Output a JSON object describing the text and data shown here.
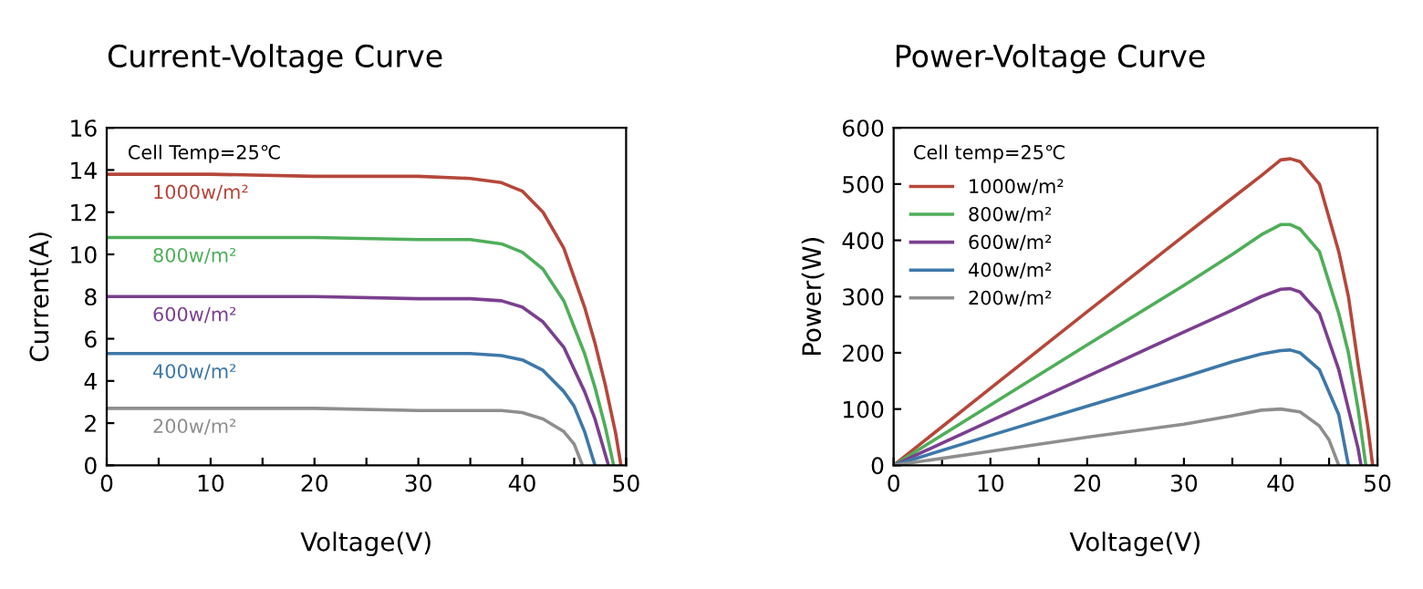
{
  "chart_data": [
    {
      "type": "line",
      "title": "Current-Voltage Curve",
      "xlabel": "Voltage(V)",
      "ylabel": "Current(A)",
      "annotations": [
        "Cell Temp=25℃"
      ],
      "xlim": [
        0,
        50
      ],
      "ylim": [
        0,
        16
      ],
      "xticks": [
        0,
        {
          "value": 5,
          "label": null
        },
        10,
        {
          "value": 15,
          "label": null
        },
        20,
        {
          "value": 25,
          "label": null
        },
        30,
        {
          "value": 35,
          "label": null
        },
        40,
        {
          "value": 45,
          "label": null
        },
        50
      ],
      "yticks": [
        0,
        2,
        4,
        6,
        8,
        10,
        12,
        14,
        16
      ],
      "grid": false,
      "legend": false,
      "marker": "none",
      "line_style": "solid",
      "series": [
        {
          "name": "1000w/m²",
          "color": "#b5473a",
          "x": [
            0,
            10,
            20,
            30,
            35,
            38,
            40,
            42,
            44,
            46,
            47,
            48,
            49,
            49.5
          ],
          "values": [
            13.8,
            13.8,
            13.7,
            13.7,
            13.6,
            13.4,
            13.0,
            12.0,
            10.3,
            7.5,
            5.8,
            3.8,
            1.5,
            0
          ]
        },
        {
          "name": "800w/m²",
          "color": "#4fae5a",
          "x": [
            0,
            10,
            20,
            30,
            35,
            38,
            40,
            42,
            44,
            46,
            47,
            48,
            48.8
          ],
          "values": [
            10.8,
            10.8,
            10.8,
            10.7,
            10.7,
            10.5,
            10.1,
            9.3,
            7.8,
            5.3,
            3.7,
            1.8,
            0
          ]
        },
        {
          "name": "600w/m²",
          "color": "#7b3f8f",
          "x": [
            0,
            10,
            20,
            30,
            35,
            38,
            40,
            42,
            44,
            46,
            47,
            48.3
          ],
          "values": [
            8.0,
            8.0,
            8.0,
            7.9,
            7.9,
            7.8,
            7.5,
            6.8,
            5.6,
            3.5,
            2.2,
            0
          ]
        },
        {
          "name": "400w/m²",
          "color": "#3e78a8",
          "x": [
            0,
            10,
            20,
            30,
            35,
            38,
            40,
            42,
            44,
            45,
            46,
            47
          ],
          "values": [
            5.3,
            5.3,
            5.3,
            5.3,
            5.3,
            5.2,
            5.0,
            4.5,
            3.5,
            2.8,
            1.6,
            0
          ]
        },
        {
          "name": "200w/m²",
          "color": "#8e8e8e",
          "x": [
            0,
            10,
            20,
            30,
            35,
            38,
            40,
            42,
            44,
            45,
            45.8
          ],
          "values": [
            2.7,
            2.7,
            2.7,
            2.6,
            2.6,
            2.6,
            2.5,
            2.2,
            1.6,
            1.0,
            0
          ]
        }
      ]
    },
    {
      "type": "line",
      "title": "Power-Voltage Curve",
      "xlabel": "Voltage(V)",
      "ylabel": "Power(W)",
      "annotations": [
        "Cell temp=25℃"
      ],
      "xlim": [
        0,
        50
      ],
      "ylim": [
        0,
        600
      ],
      "xticks": [
        0,
        {
          "value": 5,
          "label": null
        },
        10,
        {
          "value": 15,
          "label": null
        },
        20,
        {
          "value": 25,
          "label": null
        },
        30,
        {
          "value": 35,
          "label": null
        },
        40,
        {
          "value": 45,
          "label": null
        },
        50
      ],
      "yticks": [
        0,
        100,
        200,
        300,
        400,
        500,
        600
      ],
      "grid": false,
      "legend": "top left",
      "marker": "none",
      "line_style": "solid",
      "series": [
        {
          "name": "1000w/m²",
          "color": "#b5473a",
          "x": [
            0,
            10,
            20,
            30,
            35,
            38,
            40,
            41,
            42,
            44,
            46,
            47,
            48,
            49,
            49.5
          ],
          "values": [
            0,
            137,
            273,
            408,
            475,
            515,
            543,
            545,
            540,
            500,
            380,
            300,
            180,
            70,
            0
          ]
        },
        {
          "name": "800w/m²",
          "color": "#4fae5a",
          "x": [
            0,
            10,
            20,
            30,
            35,
            38,
            40,
            41,
            42,
            44,
            46,
            47,
            48,
            48.8
          ],
          "values": [
            0,
            107,
            214,
            320,
            375,
            410,
            428,
            428,
            420,
            380,
            270,
            200,
            100,
            0
          ]
        },
        {
          "name": "600w/m²",
          "color": "#7b3f8f",
          "x": [
            0,
            10,
            20,
            30,
            35,
            38,
            40,
            41,
            42,
            44,
            46,
            47,
            48,
            48.3
          ],
          "values": [
            0,
            79,
            158,
            237,
            276,
            300,
            313,
            314,
            308,
            270,
            170,
            100,
            30,
            0
          ]
        },
        {
          "name": "400w/m²",
          "color": "#3e78a8",
          "x": [
            0,
            10,
            20,
            30,
            35,
            38,
            40,
            41,
            42,
            44,
            46,
            47
          ],
          "values": [
            0,
            53,
            105,
            157,
            184,
            198,
            204,
            205,
            200,
            170,
            90,
            0
          ]
        },
        {
          "name": "200w/m²",
          "color": "#8e8e8e",
          "x": [
            0,
            10,
            20,
            30,
            35,
            38,
            40,
            42,
            44,
            45,
            46
          ],
          "values": [
            0,
            25,
            50,
            73,
            88,
            98,
            100,
            95,
            70,
            45,
            0
          ]
        }
      ]
    }
  ]
}
